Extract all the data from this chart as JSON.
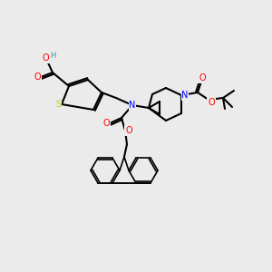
{
  "bg_color": "#ebebeb",
  "atom_colors": {
    "C": "#000000",
    "H": "#4a9090",
    "O": "#ff0000",
    "N": "#0000ff",
    "S": "#cccc00"
  },
  "bond_color": "#000000",
  "figsize": [
    3.0,
    3.0
  ],
  "dpi": 100
}
